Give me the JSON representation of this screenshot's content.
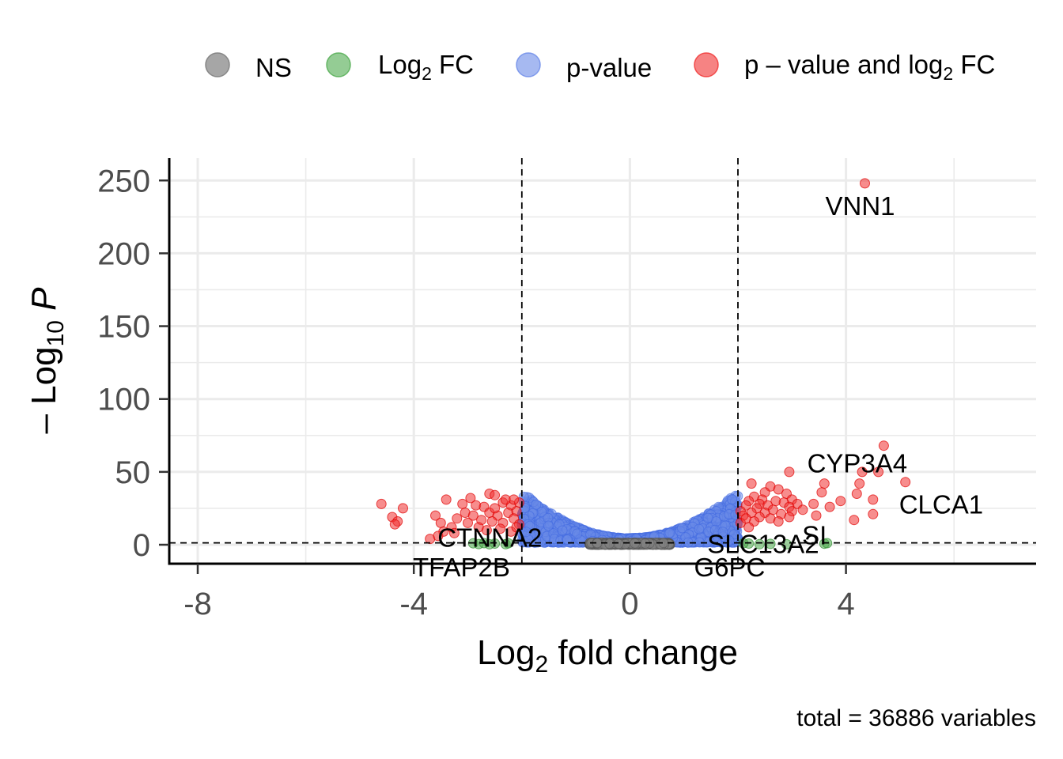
{
  "chart_data": {
    "type": "scatter",
    "xlabel": "Log2 fold change",
    "ylabel": "-Log10 P",
    "xlim": [
      -8.5,
      7.5
    ],
    "ylim": [
      -13,
      265
    ],
    "x_ticks": [
      -8,
      -4,
      0,
      4
    ],
    "y_ticks": [
      0,
      50,
      100,
      150,
      200,
      250
    ],
    "x_tick_labels": [
      "-8",
      "-4",
      "0",
      "4"
    ],
    "y_tick_labels": [
      "0",
      "50",
      "100",
      "150",
      "200",
      "250"
    ],
    "thresholds": {
      "log2fc": [
        -2,
        2
      ],
      "neg_log10_p": 1.3
    },
    "grid": true,
    "legend_position": "top",
    "legend": [
      {
        "name": "NS",
        "color": "#808080"
      },
      {
        "name": "Log2 FC",
        "color": "#4DAA4D"
      },
      {
        "name": "p-value",
        "color": "#6A8AE8"
      },
      {
        "name": "p – value and log2 FC",
        "color": "#F03030"
      }
    ],
    "caption": "total = 36886 variables",
    "labeled_genes": [
      {
        "name": "VNN1",
        "x": 4.35,
        "y": 248
      },
      {
        "name": "CYP3A4",
        "x": 4.6,
        "y": 54
      },
      {
        "name": "CLCA1",
        "x": 5.1,
        "y": 42
      },
      {
        "name": "SI",
        "x": 3.7,
        "y": 23
      },
      {
        "name": "CTNNA2",
        "x": -2.9,
        "y": 3
      },
      {
        "name": "TFAP2B",
        "x": -2.7,
        "y": 1
      },
      {
        "name": "SLC13A2",
        "x": 2.4,
        "y": 2
      },
      {
        "name": "G6PC",
        "x": 2.3,
        "y": 1
      }
    ],
    "series": [
      {
        "name": "p – value and log2 FC",
        "points": [
          [
            4.35,
            248
          ],
          [
            4.7,
            68
          ],
          [
            4.3,
            50
          ],
          [
            4.6,
            50
          ],
          [
            5.1,
            43
          ],
          [
            4.25,
            42
          ],
          [
            2.95,
            50
          ],
          [
            3.6,
            42
          ],
          [
            3.55,
            36
          ],
          [
            4.2,
            35
          ],
          [
            4.5,
            31
          ],
          [
            3.9,
            30
          ],
          [
            3.7,
            26
          ],
          [
            3.4,
            28
          ],
          [
            4.5,
            21
          ],
          [
            4.15,
            17
          ],
          [
            3.45,
            20
          ],
          [
            2.25,
            42
          ],
          [
            2.6,
            40
          ],
          [
            2.75,
            38
          ],
          [
            2.5,
            36
          ],
          [
            2.9,
            35
          ],
          [
            3.0,
            31
          ],
          [
            2.3,
            33
          ],
          [
            2.2,
            30
          ],
          [
            2.45,
            31
          ],
          [
            2.7,
            30
          ],
          [
            2.85,
            29
          ],
          [
            3.1,
            28
          ],
          [
            2.4,
            28
          ],
          [
            2.15,
            27
          ],
          [
            2.55,
            27
          ],
          [
            2.35,
            25
          ],
          [
            2.95,
            26
          ],
          [
            2.65,
            24
          ],
          [
            2.05,
            23
          ],
          [
            2.25,
            22
          ],
          [
            2.5,
            22
          ],
          [
            2.8,
            21
          ],
          [
            3.2,
            24
          ],
          [
            2.1,
            20
          ],
          [
            2.4,
            19
          ],
          [
            2.6,
            18
          ],
          [
            2.3,
            16
          ],
          [
            2.05,
            15
          ],
          [
            2.15,
            18
          ],
          [
            2.75,
            16
          ],
          [
            3.0,
            23
          ],
          [
            2.95,
            19
          ],
          [
            2.2,
            12
          ],
          [
            -4.6,
            28
          ],
          [
            -4.4,
            19
          ],
          [
            -4.3,
            16
          ],
          [
            -4.2,
            25
          ],
          [
            -4.35,
            14
          ],
          [
            -3.4,
            31
          ],
          [
            -3.6,
            20
          ],
          [
            -3.5,
            15
          ],
          [
            -3.3,
            12
          ],
          [
            -3.1,
            28
          ],
          [
            -2.95,
            32
          ],
          [
            -2.85,
            27
          ],
          [
            -2.6,
            35
          ],
          [
            -2.5,
            34
          ],
          [
            -2.7,
            26
          ],
          [
            -2.35,
            29
          ],
          [
            -2.2,
            27
          ],
          [
            -2.05,
            29
          ],
          [
            -3.05,
            22
          ],
          [
            -2.9,
            20
          ],
          [
            -2.6,
            22
          ],
          [
            -2.45,
            20
          ],
          [
            -2.25,
            22
          ],
          [
            -2.1,
            23
          ],
          [
            -3.2,
            18
          ],
          [
            -3.0,
            15
          ],
          [
            -2.75,
            17
          ],
          [
            -2.55,
            16
          ],
          [
            -2.35,
            15
          ],
          [
            -2.15,
            18
          ],
          [
            -2.05,
            14
          ],
          [
            -3.45,
            9
          ],
          [
            -3.25,
            8
          ],
          [
            -2.8,
            12
          ],
          [
            -2.65,
            10
          ],
          [
            -2.4,
            11
          ],
          [
            -2.2,
            9
          ],
          [
            -2.1,
            12
          ],
          [
            -3.7,
            4
          ],
          [
            -3.55,
            6
          ],
          [
            -2.5,
            25
          ],
          [
            -2.3,
            31
          ],
          [
            -2.15,
            31
          ]
        ]
      },
      {
        "name": "Log2 FC",
        "points": [
          [
            -2.9,
            1
          ],
          [
            -2.8,
            0.5
          ],
          [
            -2.7,
            1.1
          ],
          [
            -2.5,
            0.8
          ],
          [
            -2.3,
            0.4
          ],
          [
            -2.25,
            1.0
          ],
          [
            -2.6,
            0.3
          ],
          [
            2.4,
            0.4
          ],
          [
            2.2,
            0.8
          ],
          [
            2.6,
            0.6
          ],
          [
            3.6,
            0.7
          ],
          [
            3.65,
            1.1
          ],
          [
            2.9,
            0.3
          ],
          [
            2.1,
            1.0
          ]
        ]
      }
    ],
    "dense_cloud_note": "About 36,000 further points (NS and p-value categories) fill the region between x = -2 and 2 at low -Log10 P."
  }
}
